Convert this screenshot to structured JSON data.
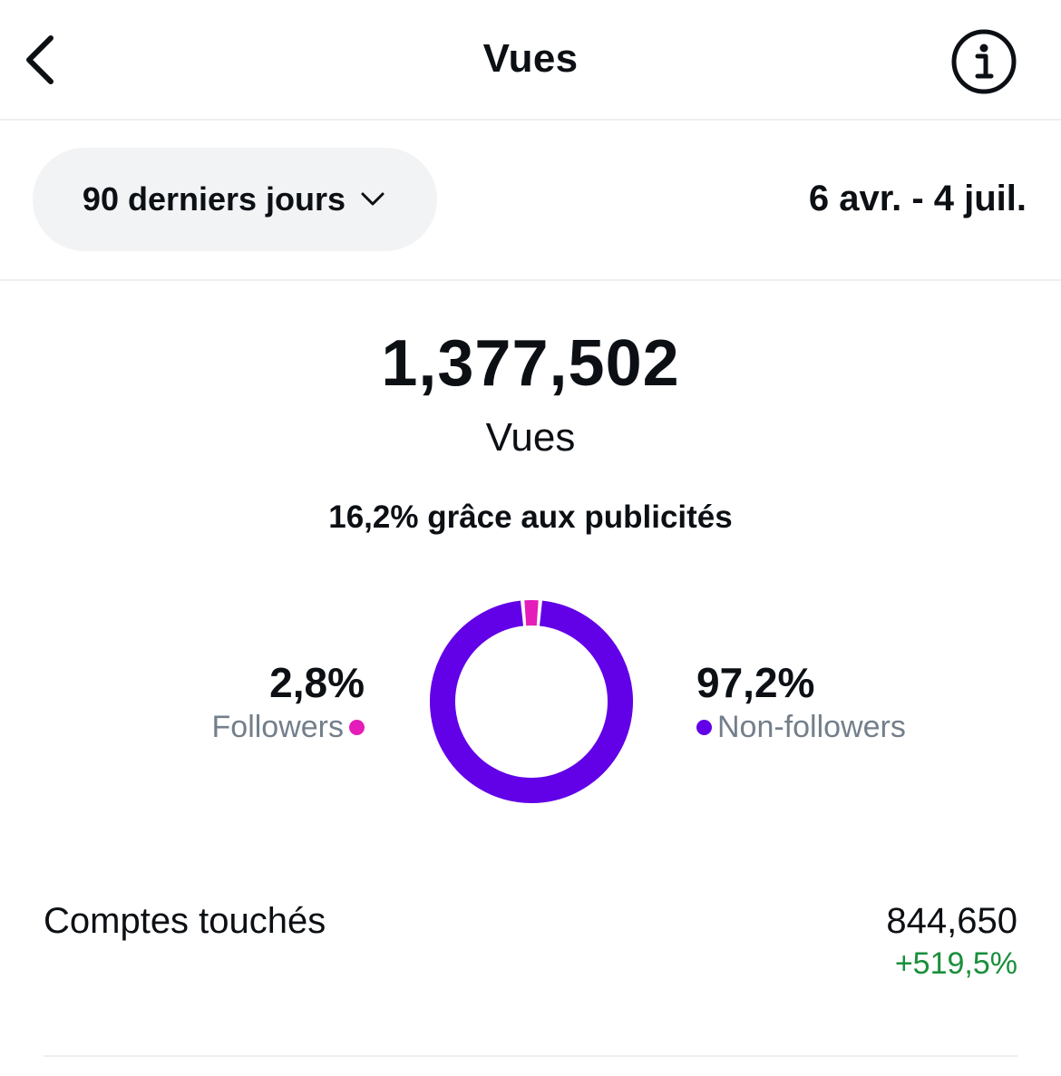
{
  "header": {
    "title": "Vues",
    "back_icon": "chevron-left-icon",
    "info_icon": "info-circle-icon"
  },
  "filter": {
    "range_label": "90 derniers jours",
    "date_range": "6 avr. - 4 juil."
  },
  "summary": {
    "total_value": "1,377,502",
    "total_label": "Vues",
    "ads_note": "16,2% grâce aux publicités"
  },
  "breakdown": {
    "followers": {
      "pct": "2,8%",
      "label": "Followers",
      "share": 0.028,
      "color": "#e41cba"
    },
    "non_followers": {
      "pct": "97,2%",
      "label": "Non-followers",
      "share": 0.972,
      "color": "#6200e8"
    }
  },
  "metrics": [
    {
      "label": "Comptes touchés",
      "value": "844,650",
      "change": "+519,5%"
    }
  ],
  "colors": {
    "text": "#0c1014",
    "secondary": "#737f8b",
    "positive": "#1a8f3c",
    "pill": "#f2f3f5"
  }
}
